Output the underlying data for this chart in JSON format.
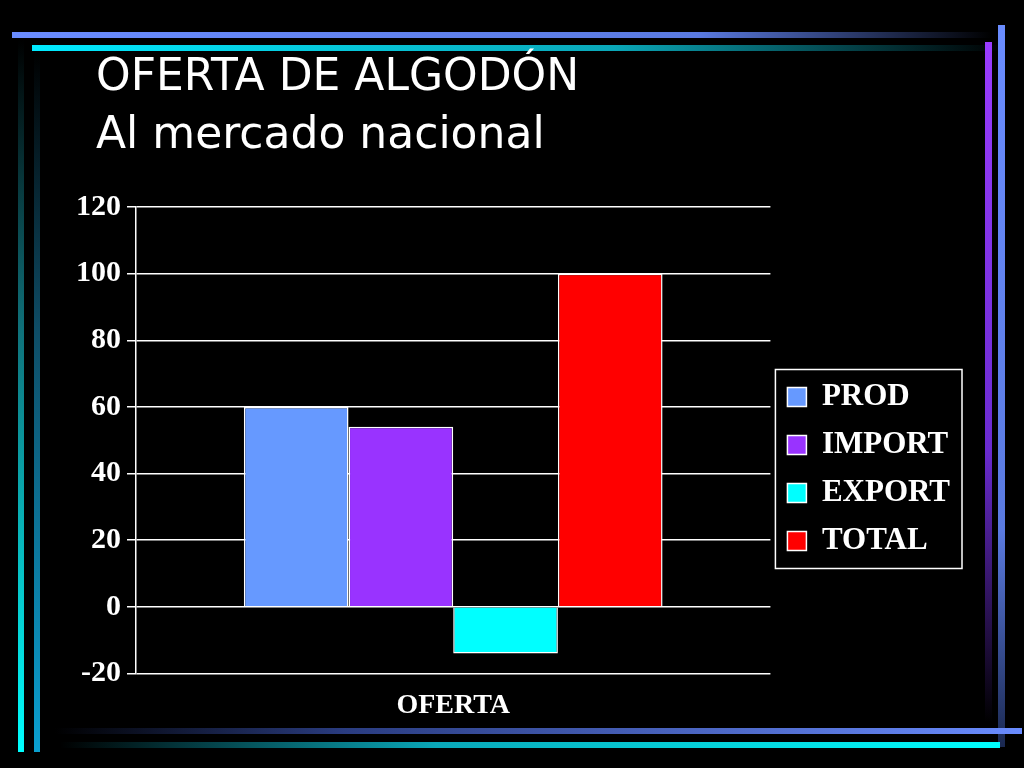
{
  "chart_data": {
    "type": "bar",
    "title": "OFERTA DE ALGODÓN",
    "subtitle": "Al mercado nacional",
    "categories": [
      "OFERTA"
    ],
    "series": [
      {
        "name": "PROD",
        "color": "#6699ff",
        "values": [
          60
        ]
      },
      {
        "name": "IMPORT",
        "color": "#9933ff",
        "values": [
          54
        ]
      },
      {
        "name": "EXPORT",
        "color": "#00ffff",
        "values": [
          -14
        ]
      },
      {
        "name": "TOTAL",
        "color": "#ff0000",
        "values": [
          100
        ]
      }
    ],
    "ylim": [
      -20,
      120
    ],
    "yticks": [
      -20,
      0,
      20,
      40,
      60,
      80,
      100,
      120
    ],
    "grid": "y",
    "legend": "right"
  }
}
